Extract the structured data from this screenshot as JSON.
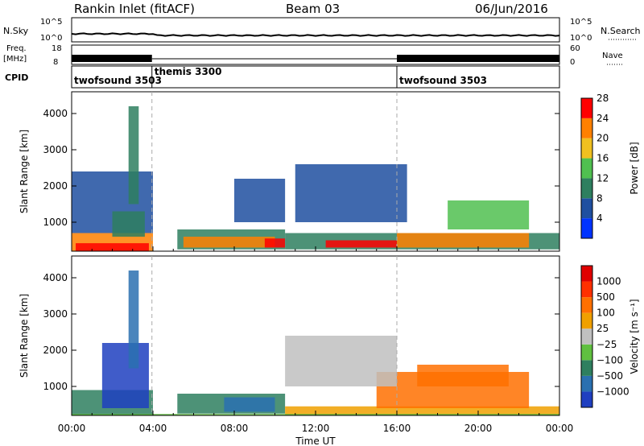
{
  "header": {
    "station": "Rankin Inlet (fitACF)",
    "beam": "Beam 03",
    "date": "06/Jun/2016"
  },
  "summary": {
    "nsky_label": "N.Sky",
    "nsearch_label": "N.Search",
    "freq_label_1": "Freq.",
    "freq_label_2": "[MHz]",
    "nave_label": "Nave",
    "cpid_label": "CPID",
    "left_top_tick": "10^5",
    "left_bottom_tick": "10^0",
    "right_top_tick": "10^5",
    "right_bottom_tick": "10^0",
    "freq_ticks": [
      "18",
      "8"
    ],
    "nave_ticks": [
      "60",
      "0"
    ],
    "cpid_segments": [
      {
        "label": "twofsound 3503",
        "start": 0,
        "end": 3.95
      },
      {
        "label": "themis 3300",
        "start": 3.95,
        "end": 16.0
      },
      {
        "label": "twofsound 3503",
        "start": 16.0,
        "end": 24.0
      }
    ]
  },
  "chart_data": [
    {
      "type": "heatmap",
      "name": "power",
      "ylabel": "Slant Range [km]",
      "yticks": [
        1000,
        2000,
        3000,
        4000
      ],
      "ylim": [
        200,
        4600
      ],
      "xlim": [
        0,
        24
      ],
      "colorbar_label": "Power [dB]",
      "colorbar_ticks": [
        "4",
        "8",
        "12",
        "16",
        "20",
        "24",
        "28"
      ],
      "colorbar_colors": [
        "#0033ff",
        "#1f4fa0",
        "#2e7f5f",
        "#50c050",
        "#f0c020",
        "#ff8000",
        "#ff0000"
      ],
      "bands": [
        {
          "t0": 0.0,
          "t1": 4.0,
          "r0": 200,
          "r1": 700,
          "color": "#ff8000"
        },
        {
          "t0": 0.2,
          "t1": 3.8,
          "r0": 200,
          "r1": 420,
          "color": "#ff0000"
        },
        {
          "t0": 0.0,
          "t1": 4.0,
          "r0": 700,
          "r1": 2400,
          "color": "#1f4fa0"
        },
        {
          "t0": 2.0,
          "t1": 3.6,
          "r0": 600,
          "r1": 1300,
          "color": "#2e7f5f"
        },
        {
          "t0": 2.8,
          "t1": 3.3,
          "r0": 1500,
          "r1": 4200,
          "color": "#2e7f5f"
        },
        {
          "t0": 5.2,
          "t1": 10.5,
          "r0": 250,
          "r1": 800,
          "color": "#2e7f5f"
        },
        {
          "t0": 5.5,
          "t1": 10.0,
          "r0": 300,
          "r1": 600,
          "color": "#ff8000"
        },
        {
          "t0": 9.5,
          "t1": 10.5,
          "r0": 300,
          "r1": 550,
          "color": "#ff0000"
        },
        {
          "t0": 10.5,
          "t1": 24.0,
          "r0": 250,
          "r1": 700,
          "color": "#2e7f5f"
        },
        {
          "t0": 12.5,
          "t1": 16.0,
          "r0": 300,
          "r1": 500,
          "color": "#ff0000"
        },
        {
          "t0": 16.0,
          "t1": 22.5,
          "r0": 300,
          "r1": 700,
          "color": "#ff8000"
        },
        {
          "t0": 18.5,
          "t1": 22.5,
          "r0": 800,
          "r1": 1600,
          "color": "#50c050"
        },
        {
          "t0": 11.0,
          "t1": 16.5,
          "r0": 1000,
          "r1": 2600,
          "color": "#1f4fa0"
        },
        {
          "t0": 8.0,
          "t1": 10.5,
          "r0": 1000,
          "r1": 2200,
          "color": "#1f4fa0"
        }
      ]
    },
    {
      "type": "heatmap",
      "name": "velocity",
      "ylabel": "Slant Range [km]",
      "yticks": [
        1000,
        2000,
        3000,
        4000
      ],
      "ylim": [
        200,
        4600
      ],
      "xlim": [
        0,
        24
      ],
      "colorbar_label": "Velocity [m s⁻¹]",
      "colorbar_ticks": [
        "1000",
        "500",
        "100",
        "25",
        "−25",
        "−100",
        "−500",
        "−1000"
      ],
      "colorbar_colors": [
        "#1f3fc0",
        "#2a70b0",
        "#2e7f5f",
        "#60c040",
        "#c0c0c0",
        "#f0a000",
        "#ff7000",
        "#ff3000",
        "#e00000"
      ],
      "bands": [
        {
          "t0": 0.0,
          "t1": 4.0,
          "r0": 200,
          "r1": 900,
          "color": "#2e7f5f"
        },
        {
          "t0": 1.5,
          "t1": 3.8,
          "r0": 400,
          "r1": 2200,
          "color": "#1f3fc0"
        },
        {
          "t0": 2.8,
          "t1": 3.3,
          "r0": 1500,
          "r1": 4200,
          "color": "#2a70b0"
        },
        {
          "t0": 5.2,
          "t1": 10.5,
          "r0": 250,
          "r1": 800,
          "color": "#2e7f5f"
        },
        {
          "t0": 7.5,
          "t1": 10.0,
          "r0": 300,
          "r1": 700,
          "color": "#2a70b0"
        },
        {
          "t0": 10.5,
          "t1": 24.0,
          "r0": 200,
          "r1": 450,
          "color": "#f0a000"
        },
        {
          "t0": 15.0,
          "t1": 22.5,
          "r0": 400,
          "r1": 1400,
          "color": "#ff7000"
        },
        {
          "t0": 17.0,
          "t1": 21.5,
          "r0": 1000,
          "r1": 1600,
          "color": "#ff7000"
        },
        {
          "t0": 10.5,
          "t1": 16.0,
          "r0": 1000,
          "r1": 2400,
          "color": "#c0c0c0"
        },
        {
          "t0": 0.0,
          "t1": 24.0,
          "r0": 200,
          "r1": 240,
          "color": "#60c040"
        }
      ]
    }
  ],
  "xaxis": {
    "label": "Time UT",
    "ticks": [
      "00:00",
      "04:00",
      "08:00",
      "12:00",
      "16:00",
      "20:00",
      "00:00"
    ],
    "minor_every_hours": 1
  }
}
